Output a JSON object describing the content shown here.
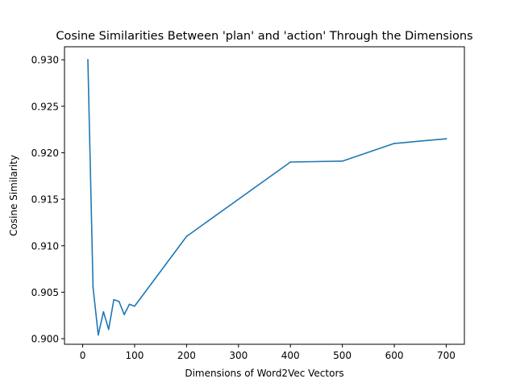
{
  "chart_data": {
    "type": "line",
    "title": "Cosine Similarities Between 'plan' and 'action' Through the Dimensions",
    "xlabel": "Dimensions of Word2Vec Vectors",
    "ylabel": "Cosine Similarity",
    "xlim": [
      -35,
      735
    ],
    "ylim": [
      0.8994,
      0.9314
    ],
    "xticks": [
      0,
      100,
      200,
      300,
      400,
      500,
      600,
      700
    ],
    "yticks": [
      0.9,
      0.905,
      0.91,
      0.915,
      0.92,
      0.925,
      0.93
    ],
    "ytick_format": 3,
    "grid": false,
    "series": [
      {
        "color": "#1f77b4",
        "x": [
          10,
          20,
          30,
          40,
          50,
          60,
          70,
          80,
          90,
          100,
          200,
          400,
          500,
          600,
          700
        ],
        "y": [
          0.93,
          0.9055,
          0.9004,
          0.9029,
          0.901,
          0.9042,
          0.904,
          0.9026,
          0.9037,
          0.9035,
          0.911,
          0.919,
          0.9191,
          0.921,
          0.9215
        ]
      }
    ]
  }
}
